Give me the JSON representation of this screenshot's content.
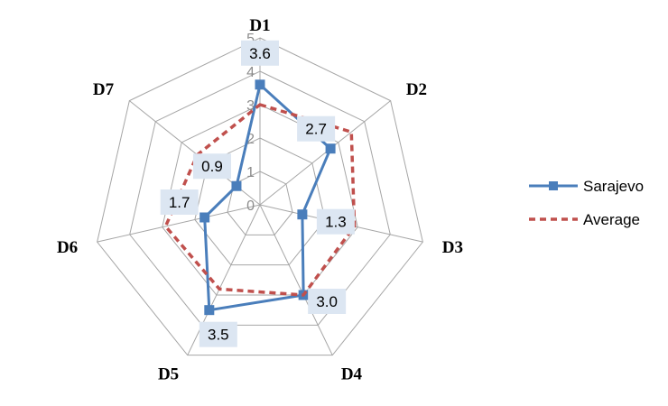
{
  "chart_data": {
    "type": "radar",
    "axes": [
      "D1",
      "D2",
      "D3",
      "D4",
      "D5",
      "D6",
      "D7"
    ],
    "rlim": [
      0,
      5
    ],
    "ticks": [
      "0",
      "1",
      "2",
      "3",
      "4",
      "5"
    ],
    "grid": true,
    "legend_position": "right",
    "series": [
      {
        "name": "Sarajevo",
        "values": [
          3.6,
          2.7,
          1.3,
          3.0,
          3.5,
          1.7,
          0.9
        ],
        "labels": [
          "3.6",
          "2.7",
          "1.3",
          "3.0",
          "3.5",
          "1.7",
          "0.9"
        ],
        "color": "#4a7ebb",
        "marker": "square",
        "line_style": "solid"
      },
      {
        "name": "Average",
        "values": [
          3.0,
          3.5,
          2.9,
          3.0,
          2.8,
          2.9,
          2.4
        ],
        "color": "#c0504d",
        "marker": "none",
        "line_style": "dashed"
      }
    ],
    "label_box_color": "#dce6f2",
    "grid_color": "#a6a6a6"
  }
}
